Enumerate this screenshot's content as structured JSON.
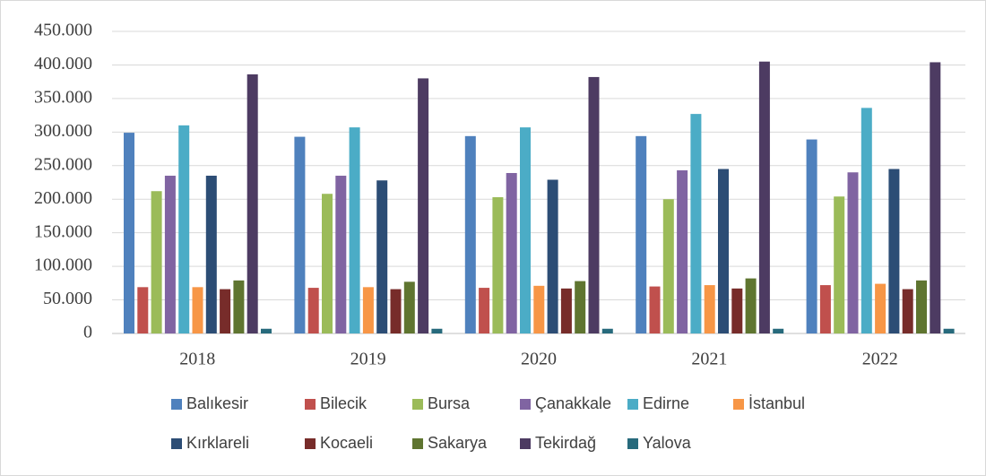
{
  "chart_data": {
    "type": "bar",
    "categories": [
      "2018",
      "2019",
      "2020",
      "2021",
      "2022"
    ],
    "series": [
      {
        "name": "Balıkesir",
        "color": "#4f81bd",
        "values": [
          299000,
          293000,
          294000,
          294000,
          289000
        ]
      },
      {
        "name": "Bilecik",
        "color": "#c0504d",
        "values": [
          69000,
          68000,
          68000,
          70000,
          72000
        ]
      },
      {
        "name": "Bursa",
        "color": "#9bbb59",
        "values": [
          212000,
          208000,
          203000,
          200000,
          204000
        ]
      },
      {
        "name": "Çanakkale",
        "color": "#8064a2",
        "values": [
          235000,
          235000,
          239000,
          243000,
          240000
        ]
      },
      {
        "name": "Edirne",
        "color": "#4bacc6",
        "values": [
          310000,
          307000,
          307000,
          327000,
          336000
        ]
      },
      {
        "name": "İstanbul",
        "color": "#f79646",
        "values": [
          69000,
          69000,
          71000,
          72000,
          74000
        ]
      },
      {
        "name": "Kırklareli",
        "color": "#2c4d75",
        "values": [
          235000,
          228000,
          229000,
          245000,
          245000
        ]
      },
      {
        "name": "Kocaeli",
        "color": "#772c2a",
        "values": [
          66000,
          66000,
          67000,
          67000,
          66000
        ]
      },
      {
        "name": "Sakarya",
        "color": "#5f7530",
        "values": [
          79000,
          77000,
          78000,
          82000,
          79000
        ]
      },
      {
        "name": "Tekirdağ",
        "color": "#4d3b62",
        "values": [
          386000,
          380000,
          382000,
          405000,
          404000
        ]
      },
      {
        "name": "Yalova",
        "color": "#276a7c",
        "values": [
          7000,
          7000,
          7000,
          7000,
          7000
        ]
      }
    ],
    "ylim": [
      0,
      450000
    ],
    "yticks": [
      0,
      {
        "value": 50000,
        "label": "50.000"
      },
      {
        "value": 100000,
        "label": "100.000"
      },
      {
        "value": 150000,
        "label": "150.000"
      },
      {
        "value": 200000,
        "label": "200.000"
      },
      {
        "value": 250000,
        "label": "250.000"
      },
      {
        "value": 300000,
        "label": "300.000"
      },
      {
        "value": 350000,
        "label": "350.000"
      },
      {
        "value": 400000,
        "label": "400.000"
      },
      {
        "value": 450000,
        "label": "450.000"
      }
    ],
    "grid": true,
    "legend": "bottom"
  }
}
